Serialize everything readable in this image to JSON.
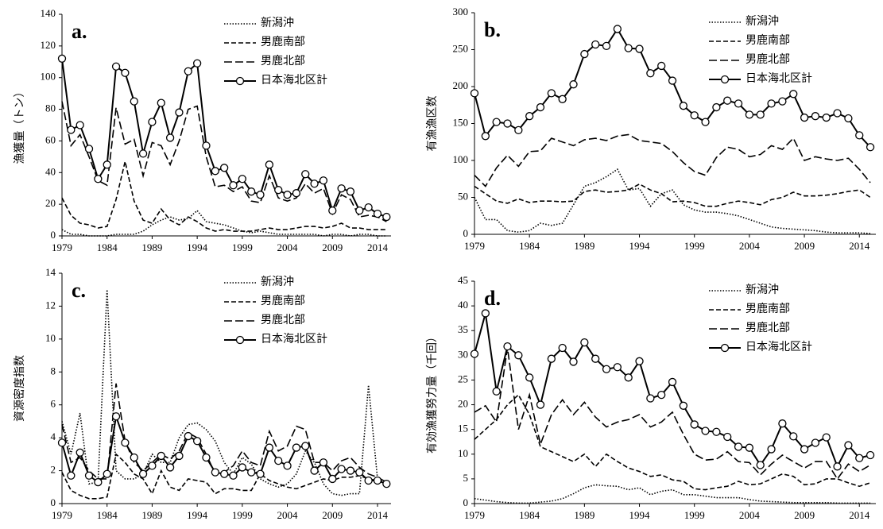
{
  "chart_data": [
    {
      "type": "line",
      "label": "a.",
      "ylabel": "漁獲量（トン）",
      "x": [
        1979,
        1980,
        1981,
        1982,
        1983,
        1984,
        1985,
        1986,
        1987,
        1988,
        1989,
        1990,
        1991,
        1992,
        1993,
        1994,
        1995,
        1996,
        1997,
        1998,
        1999,
        2000,
        2001,
        2002,
        2003,
        2004,
        2005,
        2006,
        2007,
        2008,
        2009,
        2010,
        2011,
        2012,
        2013,
        2014,
        2015
      ],
      "xlim": [
        1979,
        2015.5
      ],
      "xticks": [
        1979,
        1984,
        1989,
        1994,
        1999,
        2004,
        2009,
        2014
      ],
      "ylim": [
        0,
        140
      ],
      "yticks": [
        0,
        20,
        40,
        60,
        80,
        100,
        120,
        140
      ],
      "legend": "upper right",
      "series": [
        {
          "name": "新潟沖",
          "color": "#000000",
          "dash": "dotted",
          "values": [
            4,
            1,
            1,
            0,
            0,
            0,
            1,
            1,
            1,
            3,
            7,
            10,
            12,
            10,
            11,
            16,
            9,
            8,
            7,
            5,
            3,
            2,
            3,
            2,
            1,
            1,
            1,
            1,
            1,
            0,
            1,
            1,
            0,
            1,
            1,
            0,
            0
          ]
        },
        {
          "name": "男鹿南部",
          "color": "#000000",
          "dash": "dashed",
          "values": [
            24,
            13,
            8,
            7,
            5,
            6,
            23,
            47,
            22,
            10,
            8,
            17,
            10,
            7,
            12,
            9,
            5,
            3,
            4,
            3,
            3,
            3,
            4,
            5,
            4,
            4,
            5,
            6,
            6,
            5,
            6,
            8,
            5,
            5,
            4,
            4,
            4
          ]
        },
        {
          "name": "男鹿北部",
          "color": "#000000",
          "dash": "longdash",
          "values": [
            85,
            57,
            64,
            50,
            35,
            32,
            81,
            58,
            61,
            38,
            59,
            57,
            45,
            60,
            80,
            82,
            50,
            31,
            32,
            28,
            31,
            22,
            21,
            38,
            24,
            22,
            24,
            33,
            27,
            30,
            14,
            26,
            23,
            12,
            13,
            12,
            9
          ]
        },
        {
          "name": "日本海北区計",
          "color": "#000000",
          "dash": "solid",
          "marker": "circle",
          "values": [
            112,
            67,
            70,
            55,
            36,
            45,
            107,
            103,
            85,
            52,
            72,
            84,
            62,
            78,
            104,
            109,
            57,
            41,
            43,
            32,
            36,
            28,
            26,
            45,
            29,
            26,
            27,
            39,
            33,
            35,
            16,
            30,
            28,
            16,
            18,
            14,
            12
          ]
        }
      ]
    },
    {
      "type": "line",
      "label": "b.",
      "ylabel": "有漁漁区数",
      "x": [
        1979,
        1980,
        1981,
        1982,
        1983,
        1984,
        1985,
        1986,
        1987,
        1988,
        1989,
        1990,
        1991,
        1992,
        1993,
        1994,
        1995,
        1996,
        1997,
        1998,
        1999,
        2000,
        2001,
        2002,
        2003,
        2004,
        2005,
        2006,
        2007,
        2008,
        2009,
        2010,
        2011,
        2012,
        2013,
        2014,
        2015
      ],
      "xlim": [
        1979,
        2015.5
      ],
      "xticks": [
        1979,
        1984,
        1989,
        1994,
        1999,
        2004,
        2009,
        2014
      ],
      "ylim": [
        0,
        300
      ],
      "yticks": [
        0,
        50,
        100,
        150,
        200,
        250,
        300
      ],
      "legend": "upper right",
      "series": [
        {
          "name": "新潟沖",
          "color": "#000000",
          "dash": "dotted",
          "values": [
            50,
            20,
            20,
            5,
            3,
            5,
            15,
            12,
            15,
            40,
            65,
            70,
            78,
            88,
            60,
            62,
            38,
            55,
            60,
            40,
            33,
            30,
            30,
            28,
            25,
            20,
            15,
            10,
            8,
            7,
            6,
            5,
            3,
            2,
            2,
            2,
            1
          ]
        },
        {
          "name": "男鹿南部",
          "color": "#000000",
          "dash": "dashed",
          "values": [
            65,
            55,
            45,
            42,
            48,
            43,
            45,
            45,
            44,
            45,
            58,
            60,
            57,
            58,
            60,
            68,
            60,
            55,
            44,
            45,
            43,
            38,
            38,
            42,
            45,
            43,
            40,
            47,
            50,
            57,
            52,
            52,
            53,
            55,
            58,
            60,
            50
          ]
        },
        {
          "name": "男鹿北部",
          "color": "#000000",
          "dash": "longdash",
          "values": [
            80,
            65,
            90,
            107,
            92,
            112,
            113,
            130,
            125,
            120,
            128,
            130,
            127,
            133,
            135,
            127,
            125,
            123,
            112,
            97,
            85,
            80,
            104,
            118,
            115,
            105,
            108,
            120,
            115,
            130,
            100,
            105,
            102,
            100,
            103,
            88,
            70
          ]
        },
        {
          "name": "日本海北区計",
          "color": "#000000",
          "dash": "solid",
          "marker": "circle",
          "values": [
            191,
            133,
            152,
            150,
            141,
            160,
            172,
            191,
            183,
            203,
            244,
            257,
            255,
            278,
            252,
            251,
            218,
            228,
            208,
            174,
            161,
            152,
            172,
            181,
            177,
            162,
            162,
            177,
            180,
            190,
            158,
            160,
            158,
            164,
            157,
            134,
            118
          ]
        }
      ]
    },
    {
      "type": "line",
      "label": "c.",
      "ylabel": "資源密度指数",
      "x": [
        1979,
        1980,
        1981,
        1982,
        1983,
        1984,
        1985,
        1986,
        1987,
        1988,
        1989,
        1990,
        1991,
        1992,
        1993,
        1994,
        1995,
        1996,
        1997,
        1998,
        1999,
        2000,
        2001,
        2002,
        2003,
        2004,
        2005,
        2006,
        2007,
        2008,
        2009,
        2010,
        2011,
        2012,
        2013,
        2014,
        2015
      ],
      "xlim": [
        1979,
        2015.5
      ],
      "xticks": [
        1979,
        1984,
        1989,
        1994,
        1999,
        2004,
        2009,
        2014
      ],
      "ylim": [
        0,
        14
      ],
      "yticks": [
        0,
        2,
        4,
        6,
        8,
        10,
        12,
        14
      ],
      "legend": "upper right",
      "series": [
        {
          "name": "新潟沖",
          "color": "#000000",
          "dash": "dotted",
          "values": [
            5.0,
            3.0,
            5.5,
            1.2,
            1.3,
            13.0,
            2.0,
            1.5,
            1.5,
            1.8,
            3.0,
            2.5,
            2.5,
            4.0,
            4.8,
            4.9,
            4.5,
            3.8,
            2.5,
            1.8,
            2.8,
            2.4,
            1.5,
            1.2,
            1.0,
            1.2,
            1.8,
            3.2,
            2.5,
            1.2,
            0.6,
            0.5,
            0.6,
            0.6,
            7.2,
            1.5,
            1.2
          ]
        },
        {
          "name": "男鹿南部",
          "color": "#000000",
          "dash": "dashed",
          "values": [
            1.9,
            0.8,
            0.5,
            0.3,
            0.3,
            0.4,
            3.0,
            2.5,
            1.8,
            1.5,
            0.6,
            2.0,
            1.0,
            0.8,
            1.5,
            1.4,
            1.3,
            0.6,
            0.9,
            0.9,
            0.8,
            0.8,
            1.8,
            1.4,
            1.2,
            1.0,
            0.9,
            1.1,
            1.3,
            1.5,
            1.4,
            1.6,
            1.6,
            1.7,
            1.5,
            1.4,
            1.2
          ]
        },
        {
          "name": "男鹿北部",
          "color": "#000000",
          "dash": "longdash",
          "values": [
            4.8,
            2.5,
            2.8,
            2.0,
            1.5,
            1.5,
            7.3,
            3.8,
            2.5,
            2.0,
            2.5,
            3.0,
            2.7,
            3.2,
            4.3,
            4.0,
            3.0,
            1.8,
            1.9,
            2.3,
            3.2,
            2.5,
            2.3,
            4.4,
            3.2,
            3.5,
            4.7,
            4.5,
            2.5,
            2.5,
            2.0,
            2.6,
            2.8,
            2.2,
            1.8,
            1.6,
            1.3
          ]
        },
        {
          "name": "日本海北区計",
          "color": "#000000",
          "dash": "solid",
          "marker": "circle",
          "values": [
            3.7,
            1.7,
            3.1,
            1.7,
            1.3,
            1.8,
            5.3,
            3.7,
            2.8,
            1.8,
            2.3,
            2.9,
            2.2,
            2.9,
            4.1,
            3.8,
            2.8,
            1.9,
            1.8,
            1.7,
            2.2,
            1.9,
            1.8,
            3.4,
            2.6,
            2.3,
            3.4,
            3.5,
            2.0,
            2.5,
            1.5,
            2.1,
            2.0,
            1.9,
            1.4,
            1.4,
            1.2
          ]
        }
      ]
    },
    {
      "type": "line",
      "label": "d.",
      "ylabel": "有効漁獲努力量（千回）",
      "x": [
        1979,
        1980,
        1981,
        1982,
        1983,
        1984,
        1985,
        1986,
        1987,
        1988,
        1989,
        1990,
        1991,
        1992,
        1993,
        1994,
        1995,
        1996,
        1997,
        1998,
        1999,
        2000,
        2001,
        2002,
        2003,
        2004,
        2005,
        2006,
        2007,
        2008,
        2009,
        2010,
        2011,
        2012,
        2013,
        2014,
        2015
      ],
      "xlim": [
        1979,
        2015.5
      ],
      "xticks": [
        1979,
        1984,
        1989,
        1994,
        1999,
        2004,
        2009,
        2014
      ],
      "ylim": [
        0,
        45
      ],
      "yticks": [
        0,
        5,
        10,
        15,
        20,
        25,
        30,
        35,
        40,
        45
      ],
      "legend": "upper right",
      "series": [
        {
          "name": "新潟沖",
          "color": "#000000",
          "dash": "dotted",
          "values": [
            1,
            0.7,
            0.4,
            0.2,
            0.1,
            0.1,
            0.3,
            0.5,
            1,
            2,
            3.2,
            3.8,
            3.6,
            3.5,
            2.8,
            3.2,
            1.8,
            2.5,
            2.8,
            1.8,
            1.8,
            1.5,
            1.2,
            1.2,
            1.2,
            0.8,
            0.5,
            0.4,
            0.3,
            0.2,
            0.2,
            0.2,
            0.2,
            0.1,
            0.1,
            0.1,
            0.1
          ]
        },
        {
          "name": "男鹿南部",
          "color": "#000000",
          "dash": "dashed",
          "values": [
            13,
            15,
            17,
            20,
            22,
            18,
            11.5,
            10.5,
            9.5,
            8.5,
            10,
            7.5,
            10,
            8.5,
            7.2,
            6.5,
            5.5,
            5.8,
            4.8,
            4.5,
            3,
            2.8,
            3.2,
            3.5,
            4.5,
            3.8,
            4,
            5,
            6,
            5.5,
            3.8,
            4,
            5,
            5,
            4.2,
            3.5,
            4.2
          ]
        },
        {
          "name": "男鹿北部",
          "color": "#000000",
          "dash": "longdash",
          "values": [
            18.5,
            19.8,
            16.5,
            31.5,
            15,
            22,
            12,
            18,
            21,
            18,
            20.5,
            17.5,
            15.5,
            16.5,
            17,
            18,
            15.5,
            16.5,
            18.5,
            14,
            10,
            8.8,
            9,
            10.5,
            8.5,
            8.3,
            5.8,
            8,
            9.8,
            8.5,
            7.2,
            8.5,
            8.5,
            5,
            8,
            6.5,
            7.8
          ]
        },
        {
          "name": "日本海北区計",
          "color": "#000000",
          "dash": "solid",
          "marker": "circle",
          "values": [
            30.3,
            38.5,
            22.7,
            31.8,
            30,
            25.5,
            20,
            29.3,
            31.5,
            28.7,
            32.6,
            29.3,
            27.2,
            27.6,
            25.5,
            28.8,
            21.3,
            22,
            24.6,
            19.8,
            16,
            14.7,
            14.5,
            13.5,
            11.5,
            11.3,
            7.8,
            11,
            16.2,
            13.6,
            11,
            12.3,
            13.4,
            7.5,
            11.8,
            9.2,
            9.8
          ]
        }
      ]
    }
  ]
}
